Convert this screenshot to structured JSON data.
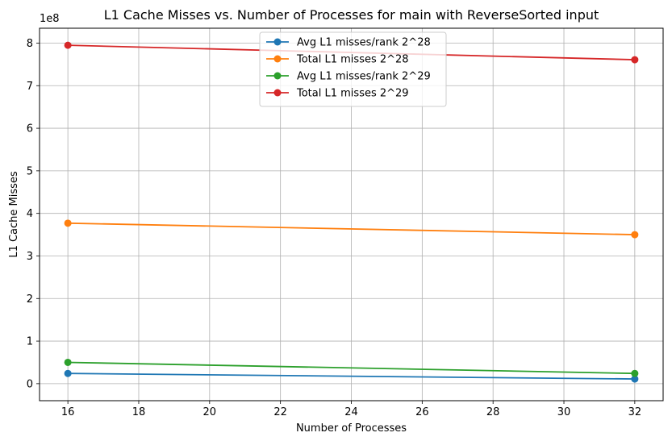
{
  "chart_data": {
    "type": "line",
    "title": "L1 Cache Misses vs. Number of Processes for main with ReverseSorted input",
    "xlabel": "Number of Processes",
    "ylabel": "L1 Cache Misses",
    "y_scale_note": "1e8",
    "x": [
      16,
      32
    ],
    "xlim": [
      15.2,
      32.8
    ],
    "ylim": [
      -0.4,
      8.35
    ],
    "x_ticks": [
      16,
      18,
      20,
      22,
      24,
      26,
      28,
      30,
      32
    ],
    "y_ticks": [
      0,
      1,
      2,
      3,
      4,
      5,
      6,
      7,
      8
    ],
    "grid": true,
    "legend_position": "upper center",
    "series": [
      {
        "name": "Avg L1 misses/rank 2^28",
        "color": "#1f77b4",
        "values": [
          0.24,
          0.11
        ]
      },
      {
        "name": "Total L1 misses 2^28",
        "color": "#ff7f0e",
        "values": [
          3.77,
          3.5
        ]
      },
      {
        "name": "Avg L1 misses/rank 2^29",
        "color": "#2ca02c",
        "values": [
          0.5,
          0.24
        ]
      },
      {
        "name": "Total L1 misses 2^29",
        "color": "#d62728",
        "values": [
          7.95,
          7.61
        ]
      }
    ]
  }
}
